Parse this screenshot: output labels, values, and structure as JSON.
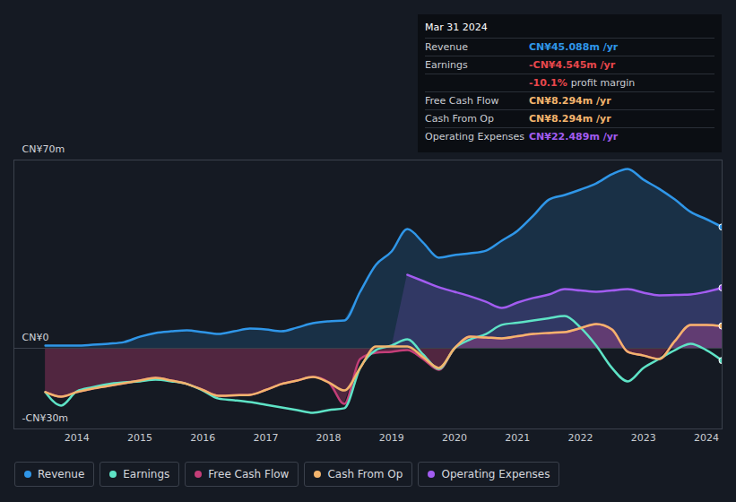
{
  "chart_data": {
    "type": "line",
    "x": [
      2013.5,
      2013.75,
      2014,
      2014.25,
      2014.5,
      2014.75,
      2015,
      2015.25,
      2015.5,
      2015.75,
      2016,
      2016.25,
      2016.5,
      2016.75,
      2017,
      2017.25,
      2017.5,
      2017.75,
      2018,
      2018.25,
      2018.5,
      2018.75,
      2019,
      2019.25,
      2019.5,
      2019.75,
      2020,
      2020.25,
      2020.5,
      2020.75,
      2021,
      2021.25,
      2021.5,
      2021.75,
      2022,
      2022.25,
      2022.5,
      2022.75,
      2023,
      2023.25,
      2023.5,
      2023.75,
      2024,
      2024.25
    ],
    "xlim": [
      2013,
      2024.25
    ],
    "xticks": [
      2014,
      2015,
      2016,
      2017,
      2018,
      2019,
      2020,
      2021,
      2022,
      2023,
      2024
    ],
    "ylim": [
      -30,
      70
    ],
    "yticks": [
      {
        "value": -30,
        "label": "-CN¥30m"
      },
      {
        "value": 0,
        "label": "CN¥0"
      },
      {
        "value": 70,
        "label": "CN¥70m"
      }
    ],
    "grid": true,
    "legend": "bottom",
    "series": [
      {
        "name": "Revenue",
        "color": "#2f96e8",
        "type": "area",
        "values": [
          1,
          1,
          1,
          1.3,
          1.7,
          2.3,
          4.3,
          5.7,
          6.3,
          6.7,
          6,
          5.3,
          6.3,
          7.3,
          7,
          6.3,
          7.7,
          9.3,
          10,
          10.3,
          21,
          31,
          36,
          44.3,
          39.3,
          33.7,
          34.7,
          35.3,
          36.3,
          40,
          43.7,
          49.3,
          55.3,
          57,
          59,
          61.3,
          64.7,
          66.7,
          62.7,
          59.3,
          55.3,
          50.7,
          48,
          45.088
        ]
      },
      {
        "name": "Earnings",
        "color": "#5ee3c6",
        "type": "line",
        "values": [
          -16.3,
          -21.3,
          -16,
          -14.5,
          -13.3,
          -12.7,
          -12.3,
          -11.7,
          -12.3,
          -13.3,
          -15.7,
          -18.7,
          -19.3,
          -20,
          -21,
          -22,
          -23,
          -24,
          -23,
          -22.3,
          -7.3,
          -0.7,
          1,
          3.3,
          -2.3,
          -7.7,
          0,
          3.3,
          5.3,
          8.7,
          9.5,
          10.3,
          11.2,
          12,
          7.7,
          1,
          -7.3,
          -12.3,
          -7.3,
          -4,
          -0.7,
          1.7,
          -0.7,
          -4.545
        ]
      },
      {
        "name": "Free Cash Flow",
        "color": "#c43e78",
        "type": "area",
        "values": [
          -16.3,
          -18,
          -16.3,
          -15,
          -14,
          -13,
          -12,
          -11,
          -12,
          -13.3,
          -15.5,
          -17.7,
          -17.5,
          -17.3,
          -15.5,
          -13.3,
          -12,
          -10.7,
          -12.7,
          -20.7,
          -4,
          -1.7,
          -1.3,
          -0.7,
          -4,
          -8,
          0,
          4.3,
          4,
          3.7,
          4.5,
          5.3,
          5.7,
          6,
          7.5,
          9,
          7,
          -1.3,
          -2.7,
          -4,
          2.7,
          8.7,
          8.7,
          8.294
        ]
      },
      {
        "name": "Cash From Op",
        "color": "#f2b46d",
        "type": "line",
        "values": [
          -16.3,
          -18,
          -16.3,
          -15,
          -14,
          -13,
          -12,
          -11,
          -12,
          -13.3,
          -15.5,
          -17.7,
          -17.5,
          -17.3,
          -15.5,
          -13.3,
          -12,
          -10.7,
          -12.7,
          -15.7,
          -7.3,
          0.7,
          0.7,
          0.7,
          -3.3,
          -7.3,
          0,
          4.3,
          4,
          3.7,
          4.5,
          5.3,
          5.7,
          6,
          7.5,
          9,
          7,
          -1.3,
          -2.7,
          -4,
          2.7,
          8.7,
          8.7,
          8.294
        ]
      },
      {
        "name": "Operating Expenses",
        "color": "#a25cf0",
        "type": "area",
        "values": [
          null,
          null,
          null,
          null,
          null,
          null,
          null,
          null,
          null,
          null,
          null,
          null,
          null,
          null,
          null,
          null,
          null,
          null,
          null,
          null,
          null,
          null,
          null,
          27.3,
          25,
          22.7,
          21,
          19.3,
          17.3,
          15,
          17,
          18.7,
          20,
          22,
          21.5,
          21,
          21.5,
          22,
          20.7,
          19.7,
          19.8,
          20,
          21,
          22.489
        ]
      }
    ],
    "annotation": {
      "title": "Mar 31 2024",
      "rows": [
        {
          "label": "Revenue",
          "value": "CN¥45.088m /yr",
          "color": "#2f96e8"
        },
        {
          "label": "Earnings",
          "value": "-CN¥4.545m /yr",
          "color": "#e8474c"
        },
        {
          "value": "-10.1%",
          "text": "profit margin",
          "color": "#e8474c"
        },
        {
          "label": "Free Cash Flow",
          "value": "CN¥8.294m /yr",
          "color": "#f2b46d"
        },
        {
          "label": "Cash From Op",
          "value": "CN¥8.294m /yr",
          "color": "#f2b46d"
        },
        {
          "label": "Operating Expenses",
          "value": "CN¥22.489m /yr",
          "color": "#a25cf0"
        }
      ]
    }
  }
}
